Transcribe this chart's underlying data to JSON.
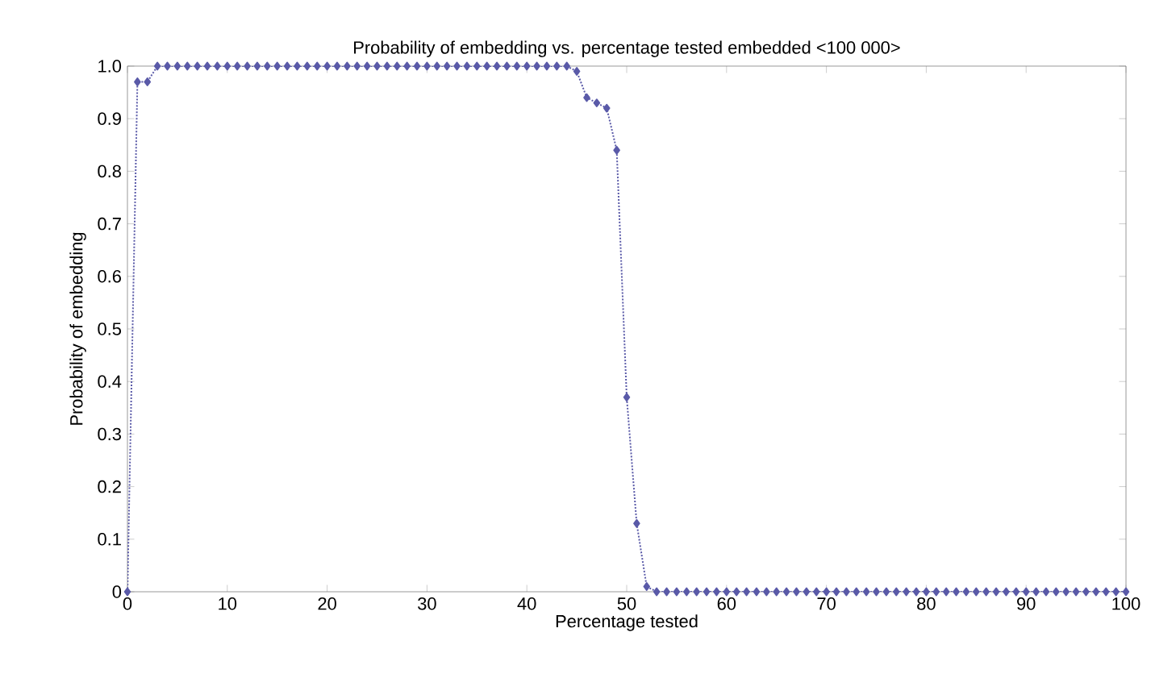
{
  "chart_data": {
    "type": "line",
    "title": "Probability of embedding vs. percentage tested embedded <100 000>",
    "xlabel": "Percentage tested",
    "ylabel": "Probability of embedding",
    "x": [
      0,
      1,
      2,
      3,
      4,
      5,
      6,
      7,
      8,
      9,
      10,
      11,
      12,
      13,
      14,
      15,
      16,
      17,
      18,
      19,
      20,
      21,
      22,
      23,
      24,
      25,
      26,
      27,
      28,
      29,
      30,
      31,
      32,
      33,
      34,
      35,
      36,
      37,
      38,
      39,
      40,
      41,
      42,
      43,
      44,
      45,
      46,
      47,
      48,
      49,
      50,
      51,
      52,
      53,
      54,
      55,
      56,
      57,
      58,
      59,
      60,
      61,
      62,
      63,
      64,
      65,
      66,
      67,
      68,
      69,
      70,
      71,
      72,
      73,
      74,
      75,
      76,
      77,
      78,
      79,
      80,
      81,
      82,
      83,
      84,
      85,
      86,
      87,
      88,
      89,
      90,
      91,
      92,
      93,
      94,
      95,
      96,
      97,
      98,
      99,
      100
    ],
    "series": [
      {
        "color": "#5a5aa8",
        "values": [
          0,
          0.97,
          0.97,
          1,
          1,
          1,
          1,
          1,
          1,
          1,
          1,
          1,
          1,
          1,
          1,
          1,
          1,
          1,
          1,
          1,
          1,
          1,
          1,
          1,
          1,
          1,
          1,
          1,
          1,
          1,
          1,
          1,
          1,
          1,
          1,
          1,
          1,
          1,
          1,
          1,
          1,
          1,
          1,
          1,
          1,
          0.99,
          0.94,
          0.93,
          0.92,
          0.84,
          0.37,
          0.13,
          0.01,
          0,
          0,
          0,
          0,
          0,
          0,
          0,
          0,
          0,
          0,
          0,
          0,
          0,
          0,
          0,
          0,
          0,
          0,
          0,
          0,
          0,
          0,
          0,
          0,
          0,
          0,
          0,
          0,
          0,
          0,
          0,
          0,
          0,
          0,
          0,
          0,
          0,
          0,
          0,
          0,
          0,
          0,
          0,
          0,
          0,
          0,
          0,
          0
        ]
      }
    ],
    "xlim": [
      0,
      100
    ],
    "ylim": [
      0,
      1
    ],
    "xticks": [
      0,
      10,
      20,
      30,
      40,
      50,
      60,
      70,
      80,
      90,
      100
    ],
    "yticks": [
      {
        "value": 0,
        "label": "0"
      },
      {
        "value": 0.1,
        "label": "0.1"
      },
      {
        "value": 0.2,
        "label": "0.2"
      },
      {
        "value": 0.3,
        "label": "0.3"
      },
      {
        "value": 0.4,
        "label": "0.4"
      },
      {
        "value": 0.5,
        "label": "0.5"
      },
      {
        "value": 0.6,
        "label": "0.6"
      },
      {
        "value": 0.7,
        "label": "0.7"
      },
      {
        "value": 0.8,
        "label": "0.8"
      },
      {
        "value": 0.9,
        "label": "0.9"
      },
      {
        "value": 1,
        "label": "1.0"
      }
    ],
    "marker": "diamond",
    "line_style": "dotted",
    "grid": false
  }
}
